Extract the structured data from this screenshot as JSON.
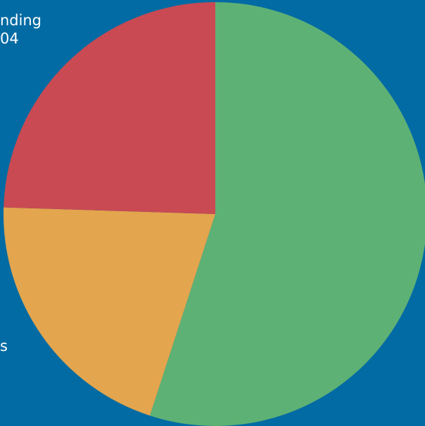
{
  "chart_data": {
    "type": "pie",
    "background_color": "#036ba3",
    "slices": [
      {
        "value": 55.0,
        "color": "#5eb175"
      },
      {
        "value": 20.5,
        "color": "#e3a54d"
      },
      {
        "value": 24.5,
        "color": "#c94a53"
      }
    ],
    "visible_label_fragments": [
      "nding",
      "04",
      "s"
    ]
  }
}
